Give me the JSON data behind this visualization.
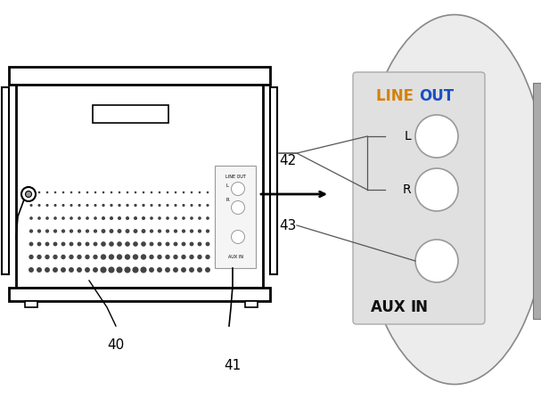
{
  "bg_color": "#ffffff",
  "line_color": "#000000",
  "gray_ellipse_color": "#ececec",
  "inner_rect_color": "#e0e0e0",
  "line_out_orange": "#d4820a",
  "line_out_blue": "#1a4fc4",
  "aux_in_color": "#111111",
  "label_40": "40",
  "label_41": "41",
  "label_42": "42",
  "label_43": "43",
  "L_label": "L",
  "R_label": "R",
  "line_out_label": "LINE OUT",
  "aux_in_label": "AUX IN"
}
